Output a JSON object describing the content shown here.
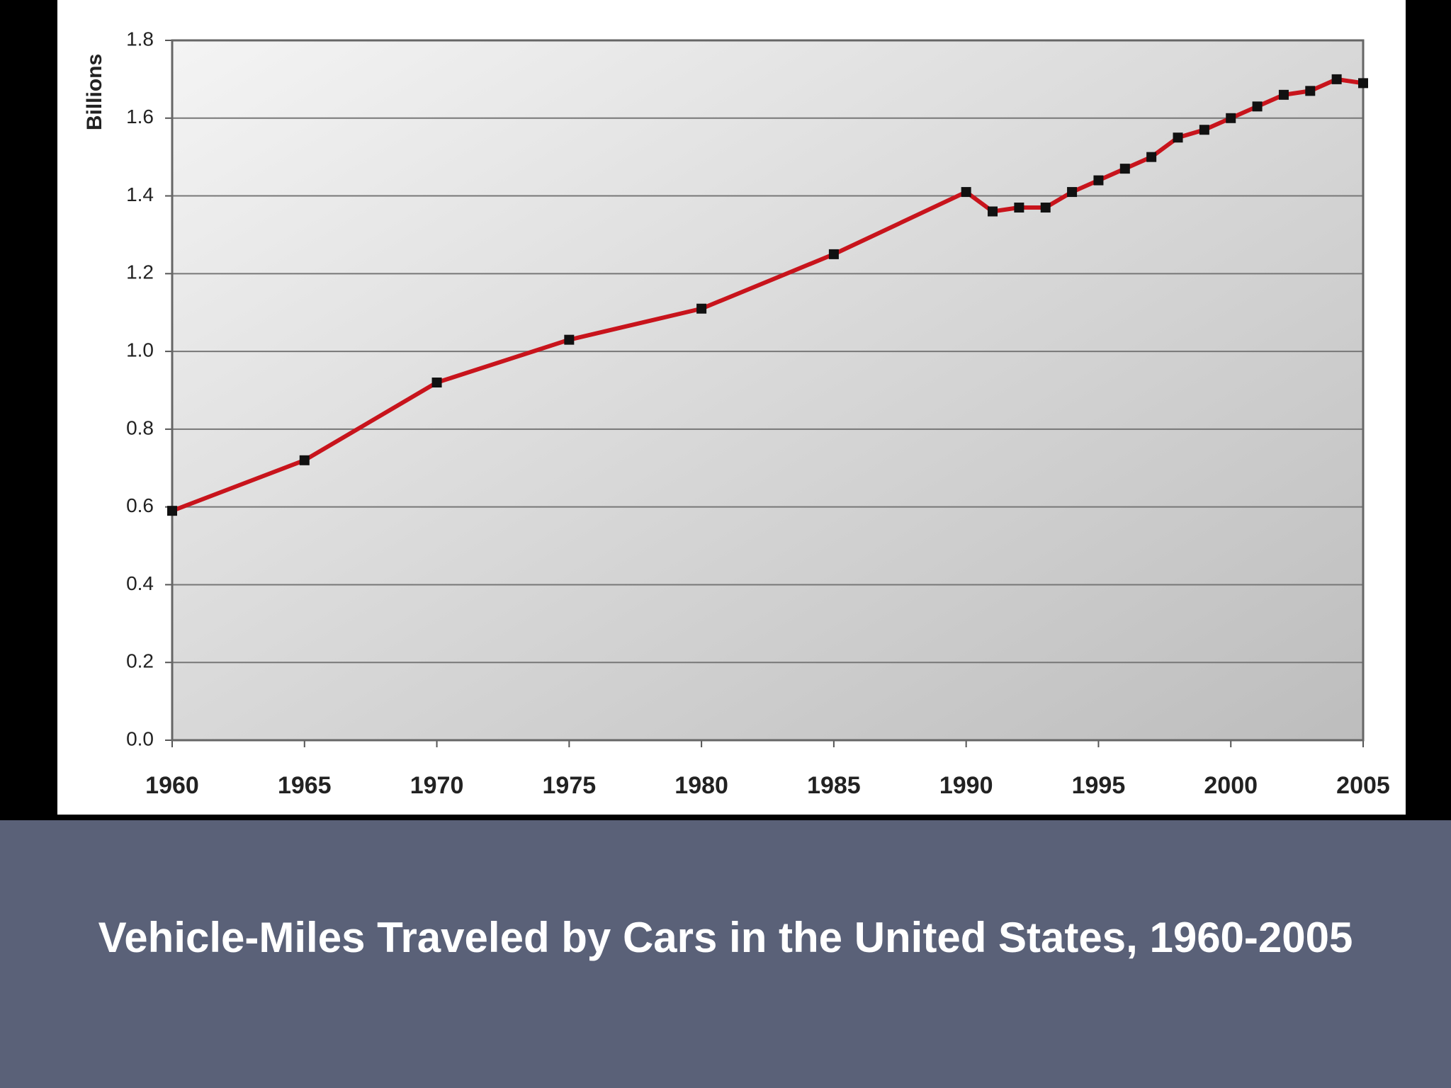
{
  "chart_data": {
    "type": "line",
    "title": "Vehicle-Miles Traveled by Cars in the United States, 1960-2005",
    "y_label": "Billions",
    "x": [
      1960,
      1965,
      1970,
      1975,
      1980,
      1985,
      1990,
      1991,
      1992,
      1993,
      1994,
      1995,
      1996,
      1997,
      1998,
      1999,
      2000,
      2001,
      2002,
      2003,
      2004,
      2005
    ],
    "series": [
      {
        "color": "#c8141c",
        "values": [
          0.59,
          0.72,
          0.92,
          1.03,
          1.11,
          1.25,
          1.41,
          1.36,
          1.37,
          1.37,
          1.41,
          1.44,
          1.47,
          1.5,
          1.55,
          1.57,
          1.6,
          1.63,
          1.66,
          1.67,
          1.7,
          1.69
        ]
      }
    ],
    "xlim": [
      1960,
      2005
    ],
    "xticks": [
      1960,
      1965,
      1970,
      1975,
      1980,
      1985,
      1990,
      1995,
      2000,
      2005
    ],
    "ylim": [
      0,
      1.8
    ],
    "yticks": [
      {
        "value": 0,
        "label": "0.0"
      },
      0.2,
      0.4,
      0.6,
      0.8,
      {
        "value": 1,
        "label": "1.0"
      },
      1.2,
      1.4,
      1.6,
      1.8
    ],
    "grid": true
  }
}
